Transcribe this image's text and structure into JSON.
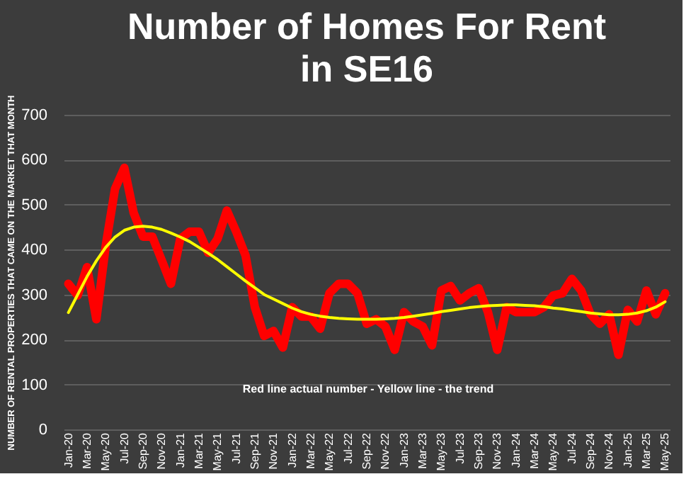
{
  "chart_data": {
    "type": "line",
    "title": "Number of Homes For Rent in SE16",
    "ylabel": "NUMBER OF RENTAL PROPERTIES THAT CAME ON THE MARKET THAT MONTH",
    "categories": [
      "Jan-20",
      null,
      "Mar-20",
      null,
      "May-20",
      null,
      "Jul-20",
      null,
      "Sep-20",
      null,
      "Nov-20",
      null,
      "Jan-21",
      null,
      "Mar-21",
      null,
      "May-21",
      null,
      "Jul-21",
      null,
      "Sep-21",
      null,
      "Nov-21",
      null,
      "Jan-22",
      null,
      "Mar-22",
      null,
      "May-22",
      null,
      "Jul-22",
      null,
      "Sep-22",
      null,
      "Nov-22",
      null,
      "Jan-23",
      null,
      "Mar-23",
      null,
      "May-23",
      null,
      "Jul-23",
      null,
      "Sep-23",
      null,
      "Nov-23",
      null,
      "Jan-24",
      null,
      "Mar-24",
      null,
      "May-24",
      null,
      "Jul-24",
      null,
      "Sep-24",
      null,
      "Nov-24",
      null,
      "Jan-25",
      null,
      "Mar-25",
      null,
      "May-25"
    ],
    "series": [
      {
        "color": "#ff0000",
        "values": [
          324,
          298,
          361,
          245,
          408,
          535,
          582,
          482,
          429,
          429,
          377,
          324,
          424,
          440,
          440,
          393,
          424,
          487,
          440,
          387,
          272,
          208,
          219,
          182,
          272,
          251,
          251,
          224,
          303,
          324,
          324,
          303,
          235,
          245,
          229,
          177,
          261,
          240,
          229,
          187,
          309,
          319,
          287,
          303,
          314,
          261,
          177,
          272,
          261,
          261,
          261,
          272,
          298,
          303,
          335,
          309,
          256,
          235,
          256,
          166,
          266,
          240,
          309,
          256,
          303
        ]
      },
      {
        "color": "#ffff00",
        "values": [
          260,
          300,
          340,
          375,
          405,
          428,
          443,
          450,
          452,
          450,
          445,
          437,
          428,
          418,
          405,
          392,
          378,
          362,
          346,
          330,
          315,
          300,
          290,
          280,
          270,
          262,
          256,
          252,
          249,
          247,
          246,
          245,
          245,
          245,
          246,
          247,
          249,
          252,
          255,
          258,
          262,
          265,
          268,
          271,
          273,
          275,
          276,
          277,
          277,
          276,
          275,
          273,
          270,
          268,
          265,
          262,
          259,
          257,
          255,
          255,
          256,
          259,
          264,
          272,
          284
        ]
      }
    ],
    "ylim": [
      0,
      700
    ],
    "yticks": [
      0,
      100,
      200,
      300,
      400,
      500,
      600,
      700
    ],
    "grid": "y",
    "annotations": [
      "Red line actual number - Yellow line  - the trend"
    ]
  }
}
